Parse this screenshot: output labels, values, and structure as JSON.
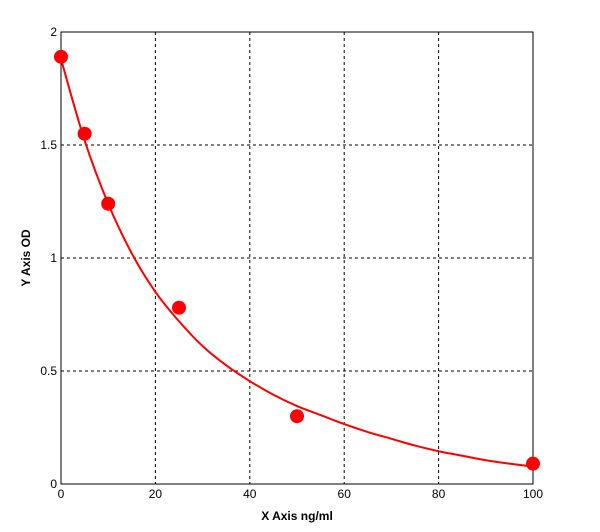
{
  "chart_data": {
    "type": "scatter",
    "title": "",
    "xlabel": "X Axis ng/ml",
    "ylabel": "Y Axis OD",
    "xlim": [
      0,
      100
    ],
    "ylim": [
      0,
      2
    ],
    "x_ticks": [
      0,
      20,
      40,
      60,
      80,
      100
    ],
    "y_ticks": [
      0,
      0.5,
      1,
      1.5,
      2
    ],
    "x_tick_labels": [
      "0",
      "20",
      "40",
      "60",
      "80",
      "100"
    ],
    "y_tick_labels": [
      "0",
      "0.5",
      "1",
      "1.5",
      "2"
    ],
    "grid": true,
    "series": [
      {
        "kind": "points",
        "color": "#ff0000",
        "x": [
          0,
          5,
          10,
          25,
          50,
          100
        ],
        "y": [
          1.89,
          1.55,
          1.24,
          0.78,
          0.3,
          0.09
        ]
      },
      {
        "kind": "fitted-curve",
        "color": "#ff0000",
        "x": [
          0,
          5,
          10,
          15,
          20,
          25,
          30,
          35,
          40,
          45,
          50,
          55,
          60,
          65,
          70,
          75,
          80,
          85,
          90,
          95,
          100
        ],
        "y": [
          1.88,
          1.52,
          1.24,
          1.02,
          0.85,
          0.72,
          0.61,
          0.525,
          0.455,
          0.395,
          0.345,
          0.305,
          0.265,
          0.23,
          0.2,
          0.17,
          0.145,
          0.125,
          0.105,
          0.09,
          0.077
        ]
      }
    ]
  }
}
